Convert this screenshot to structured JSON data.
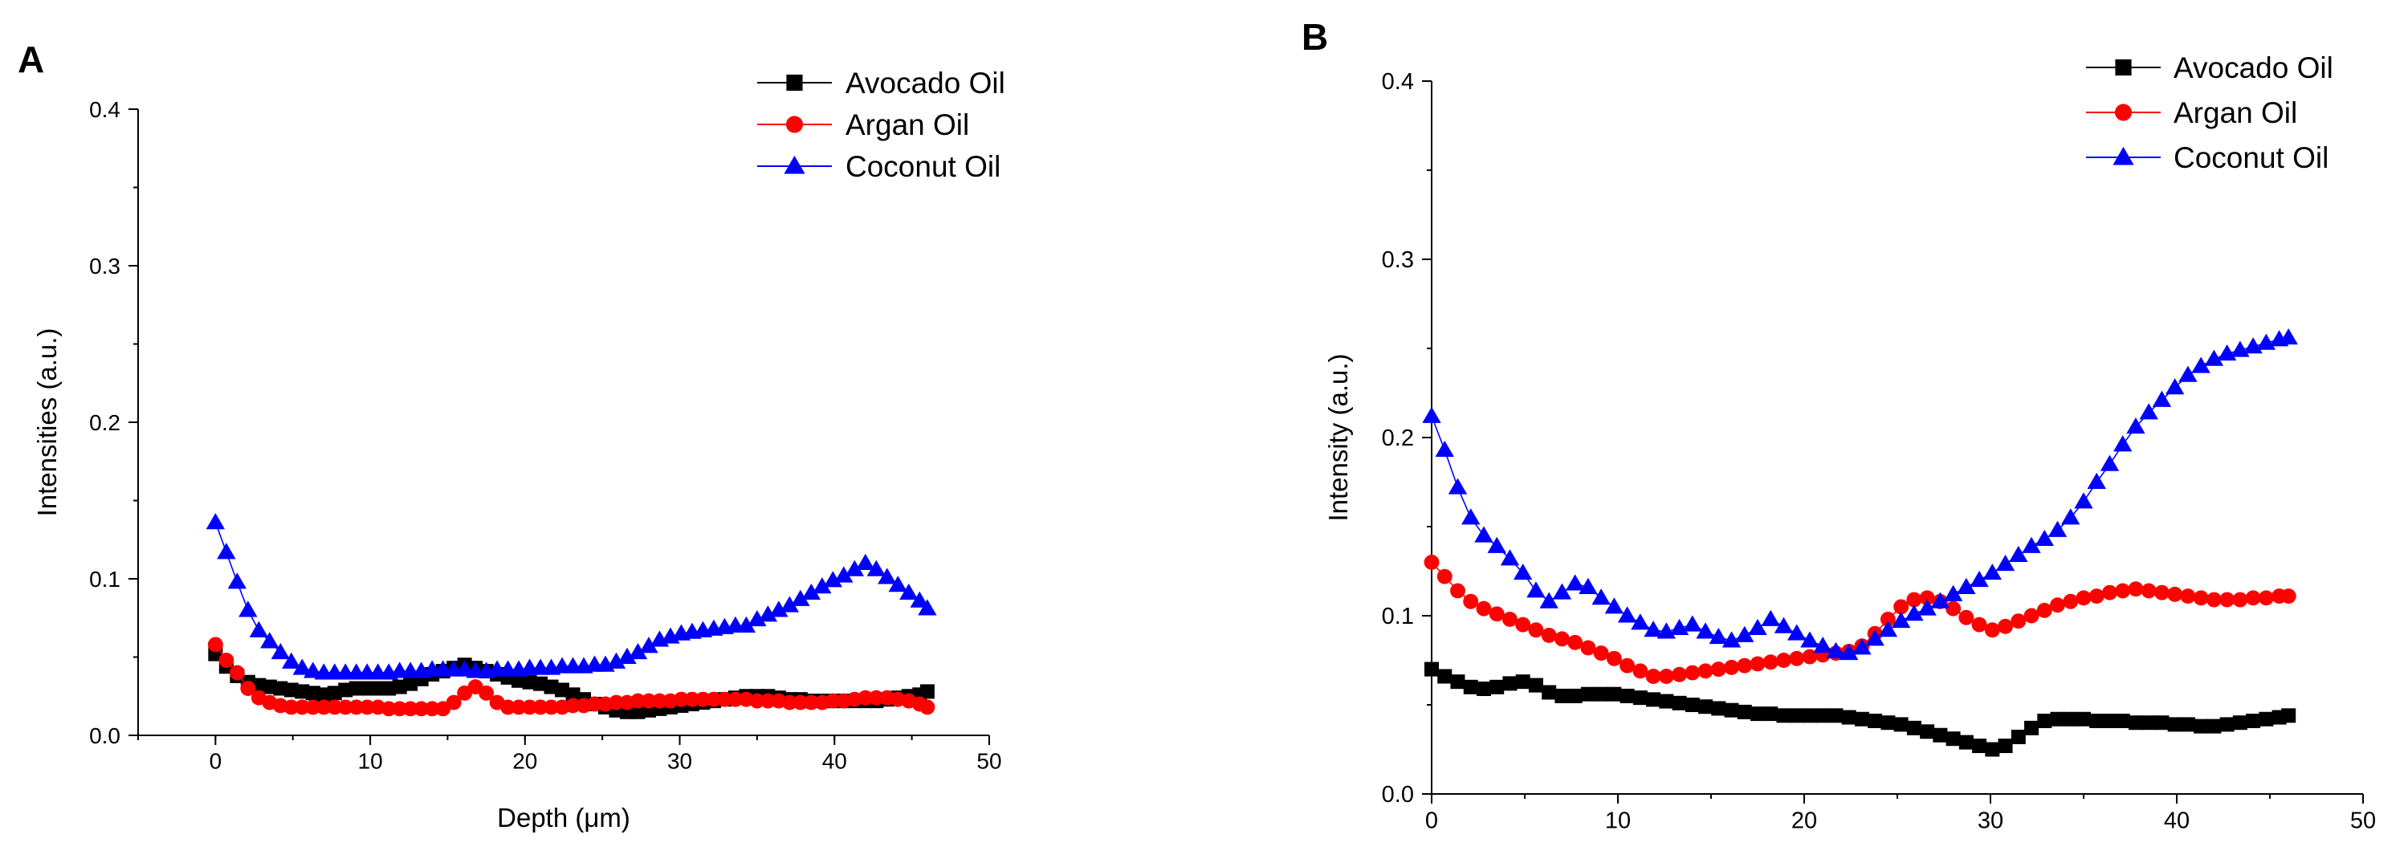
{
  "chart_data": [
    {
      "panel_label": "A",
      "type": "line",
      "title": "",
      "xlabel": "Depth (μm)",
      "ylabel": "Intensities (a.u.)",
      "xlim": [
        -5,
        50
      ],
      "ylim": [
        0,
        0.4
      ],
      "x_ticks": [
        0,
        10,
        20,
        30,
        40,
        50
      ],
      "y_ticks": [
        0.0,
        0.1,
        0.2,
        0.3,
        0.4
      ],
      "x_tick_labels": [
        "0",
        "10",
        "20",
        "30",
        "40",
        "50"
      ],
      "y_tick_labels": [
        "0.0",
        "0.1",
        "0.2",
        "0.3",
        "0.4"
      ],
      "legend_position": "top-right",
      "grid": false,
      "x": [
        0,
        0.7,
        1.4,
        2.1,
        2.8,
        3.5,
        4.2,
        4.9,
        5.6,
        6.3,
        7,
        7.7,
        8.4,
        9.1,
        9.8,
        10.5,
        11.2,
        11.9,
        12.6,
        13.3,
        14,
        14.7,
        15.4,
        16.1,
        16.8,
        17.5,
        18.2,
        18.9,
        19.6,
        20.3,
        21,
        21.7,
        22.4,
        23.1,
        23.8,
        24.5,
        25.2,
        25.9,
        26.6,
        27.3,
        28,
        28.7,
        29.4,
        30.1,
        30.8,
        31.5,
        32.2,
        32.9,
        33.6,
        34.3,
        35,
        35.7,
        36.4,
        37.1,
        37.8,
        38.5,
        39.2,
        39.9,
        40.6,
        41.3,
        42,
        42.7,
        43.4,
        44.1,
        44.8,
        45.5,
        46
      ],
      "series": [
        {
          "name": "Avocado Oil",
          "color": "#000000",
          "marker": "square",
          "values": [
            0.052,
            0.044,
            0.038,
            0.034,
            0.032,
            0.031,
            0.03,
            0.029,
            0.028,
            0.027,
            0.026,
            0.027,
            0.029,
            0.03,
            0.03,
            0.03,
            0.03,
            0.031,
            0.033,
            0.036,
            0.039,
            0.041,
            0.043,
            0.045,
            0.043,
            0.041,
            0.039,
            0.037,
            0.035,
            0.034,
            0.033,
            0.031,
            0.029,
            0.026,
            0.023,
            0.02,
            0.018,
            0.016,
            0.015,
            0.015,
            0.016,
            0.017,
            0.018,
            0.019,
            0.02,
            0.021,
            0.022,
            0.023,
            0.024,
            0.025,
            0.025,
            0.025,
            0.024,
            0.023,
            0.023,
            0.022,
            0.022,
            0.022,
            0.022,
            0.022,
            0.022,
            0.022,
            0.023,
            0.024,
            0.025,
            0.026,
            0.028
          ]
        },
        {
          "name": "Argan Oil",
          "color": "#ff0000",
          "marker": "circle",
          "values": [
            0.058,
            0.048,
            0.04,
            0.03,
            0.024,
            0.021,
            0.019,
            0.018,
            0.018,
            0.018,
            0.018,
            0.018,
            0.018,
            0.018,
            0.018,
            0.018,
            0.017,
            0.017,
            0.017,
            0.017,
            0.017,
            0.017,
            0.021,
            0.027,
            0.031,
            0.027,
            0.021,
            0.018,
            0.018,
            0.018,
            0.018,
            0.018,
            0.018,
            0.019,
            0.019,
            0.02,
            0.02,
            0.021,
            0.021,
            0.022,
            0.022,
            0.022,
            0.022,
            0.023,
            0.023,
            0.023,
            0.023,
            0.023,
            0.023,
            0.023,
            0.022,
            0.022,
            0.022,
            0.021,
            0.021,
            0.021,
            0.021,
            0.022,
            0.022,
            0.023,
            0.024,
            0.024,
            0.024,
            0.023,
            0.022,
            0.02,
            0.018
          ]
        },
        {
          "name": "Coconut Oil",
          "color": "#0000ff",
          "marker": "triangle",
          "values": [
            0.136,
            0.117,
            0.098,
            0.08,
            0.067,
            0.06,
            0.053,
            0.047,
            0.043,
            0.041,
            0.04,
            0.04,
            0.04,
            0.04,
            0.04,
            0.04,
            0.04,
            0.041,
            0.041,
            0.041,
            0.042,
            0.042,
            0.042,
            0.042,
            0.041,
            0.041,
            0.042,
            0.042,
            0.042,
            0.043,
            0.043,
            0.043,
            0.044,
            0.044,
            0.044,
            0.045,
            0.045,
            0.047,
            0.05,
            0.053,
            0.057,
            0.061,
            0.063,
            0.065,
            0.066,
            0.067,
            0.068,
            0.069,
            0.07,
            0.07,
            0.074,
            0.077,
            0.08,
            0.083,
            0.087,
            0.091,
            0.095,
            0.099,
            0.102,
            0.106,
            0.11,
            0.106,
            0.101,
            0.096,
            0.091,
            0.086,
            0.081
          ]
        }
      ]
    },
    {
      "panel_label": "B",
      "type": "line",
      "title": "",
      "xlabel": "",
      "ylabel": "Intensity (a.u.)",
      "xlim": [
        0,
        50
      ],
      "ylim": [
        0,
        0.4
      ],
      "x_ticks": [
        0,
        10,
        20,
        30,
        40,
        50
      ],
      "y_ticks": [
        0.0,
        0.1,
        0.2,
        0.3,
        0.4
      ],
      "x_tick_labels": [
        "0",
        "10",
        "20",
        "30",
        "40",
        "50"
      ],
      "y_tick_labels": [
        "0.0",
        "0.1",
        "0.2",
        "0.3",
        "0.4"
      ],
      "legend_position": "top-right",
      "grid": false,
      "x": [
        0,
        0.7,
        1.4,
        2.1,
        2.8,
        3.5,
        4.2,
        4.9,
        5.6,
        6.3,
        7,
        7.7,
        8.4,
        9.1,
        9.8,
        10.5,
        11.2,
        11.9,
        12.6,
        13.3,
        14,
        14.7,
        15.4,
        16.1,
        16.8,
        17.5,
        18.2,
        18.9,
        19.6,
        20.3,
        21,
        21.7,
        22.4,
        23.1,
        23.8,
        24.5,
        25.2,
        25.9,
        26.6,
        27.3,
        28,
        28.7,
        29.4,
        30.1,
        30.8,
        31.5,
        32.2,
        32.9,
        33.6,
        34.3,
        35,
        35.7,
        36.4,
        37.1,
        37.8,
        38.5,
        39.2,
        39.9,
        40.6,
        41.3,
        42,
        42.7,
        43.4,
        44.1,
        44.8,
        45.5,
        46
      ],
      "series": [
        {
          "name": "Avocado Oil",
          "color": "#000000",
          "marker": "square",
          "values": [
            0.07,
            0.066,
            0.063,
            0.06,
            0.059,
            0.06,
            0.062,
            0.063,
            0.061,
            0.057,
            0.055,
            0.055,
            0.056,
            0.056,
            0.056,
            0.055,
            0.054,
            0.053,
            0.052,
            0.051,
            0.05,
            0.049,
            0.048,
            0.047,
            0.046,
            0.045,
            0.045,
            0.044,
            0.044,
            0.044,
            0.044,
            0.044,
            0.043,
            0.042,
            0.041,
            0.04,
            0.039,
            0.037,
            0.035,
            0.033,
            0.031,
            0.029,
            0.027,
            0.025,
            0.027,
            0.032,
            0.037,
            0.041,
            0.042,
            0.042,
            0.042,
            0.041,
            0.041,
            0.041,
            0.04,
            0.04,
            0.04,
            0.039,
            0.039,
            0.038,
            0.038,
            0.039,
            0.04,
            0.041,
            0.042,
            0.043,
            0.044
          ]
        },
        {
          "name": "Argan Oil",
          "color": "#ff0000",
          "marker": "circle",
          "values": [
            0.13,
            0.122,
            0.114,
            0.108,
            0.104,
            0.101,
            0.098,
            0.095,
            0.092,
            0.089,
            0.087,
            0.085,
            0.082,
            0.079,
            0.076,
            0.072,
            0.069,
            0.066,
            0.066,
            0.067,
            0.068,
            0.069,
            0.07,
            0.071,
            0.072,
            0.073,
            0.074,
            0.075,
            0.076,
            0.077,
            0.078,
            0.079,
            0.08,
            0.083,
            0.09,
            0.098,
            0.105,
            0.109,
            0.11,
            0.108,
            0.104,
            0.099,
            0.095,
            0.092,
            0.094,
            0.097,
            0.1,
            0.103,
            0.106,
            0.108,
            0.11,
            0.111,
            0.113,
            0.114,
            0.115,
            0.114,
            0.113,
            0.112,
            0.111,
            0.11,
            0.109,
            0.109,
            0.109,
            0.11,
            0.11,
            0.111,
            0.111
          ]
        },
        {
          "name": "Coconut Oil",
          "color": "#0000ff",
          "marker": "triangle",
          "values": [
            0.212,
            0.193,
            0.172,
            0.155,
            0.145,
            0.139,
            0.132,
            0.124,
            0.114,
            0.108,
            0.113,
            0.118,
            0.116,
            0.11,
            0.105,
            0.1,
            0.096,
            0.092,
            0.091,
            0.093,
            0.095,
            0.091,
            0.088,
            0.086,
            0.089,
            0.093,
            0.098,
            0.094,
            0.09,
            0.086,
            0.083,
            0.08,
            0.079,
            0.082,
            0.087,
            0.092,
            0.097,
            0.101,
            0.104,
            0.108,
            0.112,
            0.116,
            0.12,
            0.124,
            0.129,
            0.134,
            0.139,
            0.143,
            0.148,
            0.155,
            0.164,
            0.175,
            0.185,
            0.196,
            0.206,
            0.214,
            0.221,
            0.228,
            0.235,
            0.24,
            0.244,
            0.247,
            0.249,
            0.251,
            0.253,
            0.255,
            0.256
          ]
        }
      ]
    }
  ]
}
